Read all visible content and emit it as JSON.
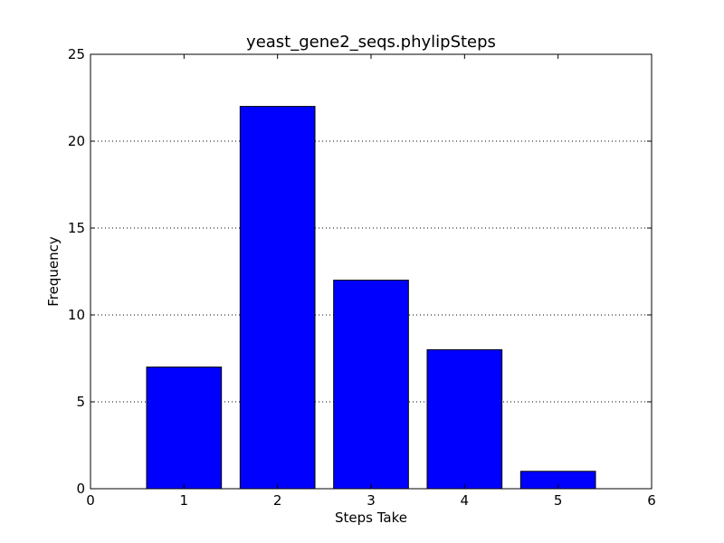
{
  "chart_data": {
    "type": "bar",
    "title": "yeast_gene2_seqs.phylipSteps",
    "xlabel": "Steps Take",
    "ylabel": "Frequency",
    "x": [
      1,
      2,
      3,
      4,
      5
    ],
    "values": [
      7,
      22,
      12,
      8,
      1
    ],
    "bar_width": 0.8,
    "xlim": [
      0,
      6
    ],
    "ylim": [
      0,
      25
    ],
    "xticks": [
      "0",
      "1",
      "2",
      "3",
      "4",
      "5",
      "6"
    ],
    "yticks": [
      "0",
      "5",
      "10",
      "15",
      "20",
      "25"
    ],
    "grid": "y-dotted",
    "legend": "none",
    "bar_color": "#0000ff",
    "edge_color": "#000000"
  }
}
